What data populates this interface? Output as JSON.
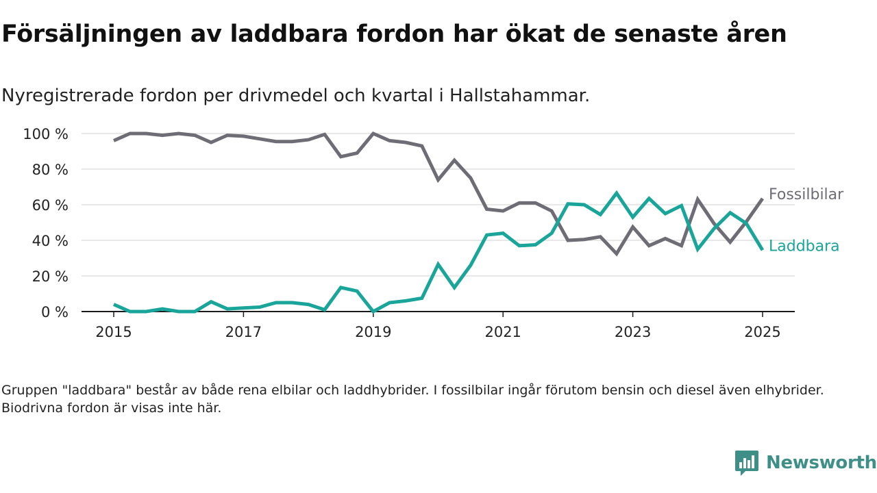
{
  "header": {
    "title": "Försäljningen av laddbara fordon har ökat de senaste åren",
    "subtitle": "Nyregistrerade fordon per drivmedel och kvartal i Hallstahammar."
  },
  "note": "Gruppen \"laddbara\" består av både rena elbilar och laddhybrider. I fossilbilar ingår förutom bensin och diesel även elhybrider. Biodrivna fordon är visas inte här.",
  "brand": {
    "name": "Newsworthy",
    "icon": "newsworthy-logo-icon",
    "color": "#3f8f89"
  },
  "chart_data": {
    "type": "line",
    "x": [
      "2015-Q1",
      "2015-Q2",
      "2015-Q3",
      "2015-Q4",
      "2016-Q1",
      "2016-Q2",
      "2016-Q3",
      "2016-Q4",
      "2017-Q1",
      "2017-Q2",
      "2017-Q3",
      "2017-Q4",
      "2018-Q1",
      "2018-Q2",
      "2018-Q3",
      "2018-Q4",
      "2019-Q1",
      "2019-Q2",
      "2019-Q3",
      "2019-Q4",
      "2020-Q1",
      "2020-Q2",
      "2020-Q3",
      "2020-Q4",
      "2021-Q1",
      "2021-Q2",
      "2021-Q3",
      "2021-Q4",
      "2022-Q1",
      "2022-Q2",
      "2022-Q3",
      "2022-Q4",
      "2023-Q1",
      "2023-Q2",
      "2023-Q3",
      "2023-Q4",
      "2024-Q1",
      "2024-Q2",
      "2024-Q3",
      "2024-Q4",
      "2025-Q1"
    ],
    "x_tick_labels": [
      "2015",
      "2017",
      "2019",
      "2021",
      "2023",
      "2025"
    ],
    "y_tick_labels": [
      "0 %",
      "20 %",
      "40 %",
      "60 %",
      "80 %",
      "100 %"
    ],
    "ylim": [
      0,
      100
    ],
    "grid": true,
    "legend_placement": "line-end labels",
    "series": [
      {
        "name": "Fossilbilar",
        "color": "#6e6c74",
        "values": [
          96,
          100,
          100,
          99,
          100,
          99,
          95,
          99,
          98.5,
          97,
          95.5,
          95.5,
          96.5,
          99.5,
          87,
          89,
          100,
          96,
          95,
          93,
          74,
          85,
          75,
          57.5,
          56.5,
          61,
          61,
          56.5,
          40,
          40.5,
          42,
          32.5,
          47.5,
          37,
          41,
          37,
          63,
          49.5,
          39,
          50.5,
          63.5
        ]
      },
      {
        "name": "Laddbara",
        "color": "#1aa59a",
        "values": [
          4,
          0,
          0,
          1.5,
          0,
          0,
          5.5,
          1.5,
          2,
          2.5,
          5,
          5,
          4,
          1,
          13.5,
          11.5,
          0,
          5,
          6,
          7.5,
          26.5,
          13.5,
          26,
          43,
          44,
          37,
          37.5,
          44,
          60.5,
          60,
          54.5,
          66.5,
          53,
          63.5,
          55,
          59.5,
          35,
          46.5,
          55.5,
          49.5,
          34.5
        ]
      }
    ]
  }
}
